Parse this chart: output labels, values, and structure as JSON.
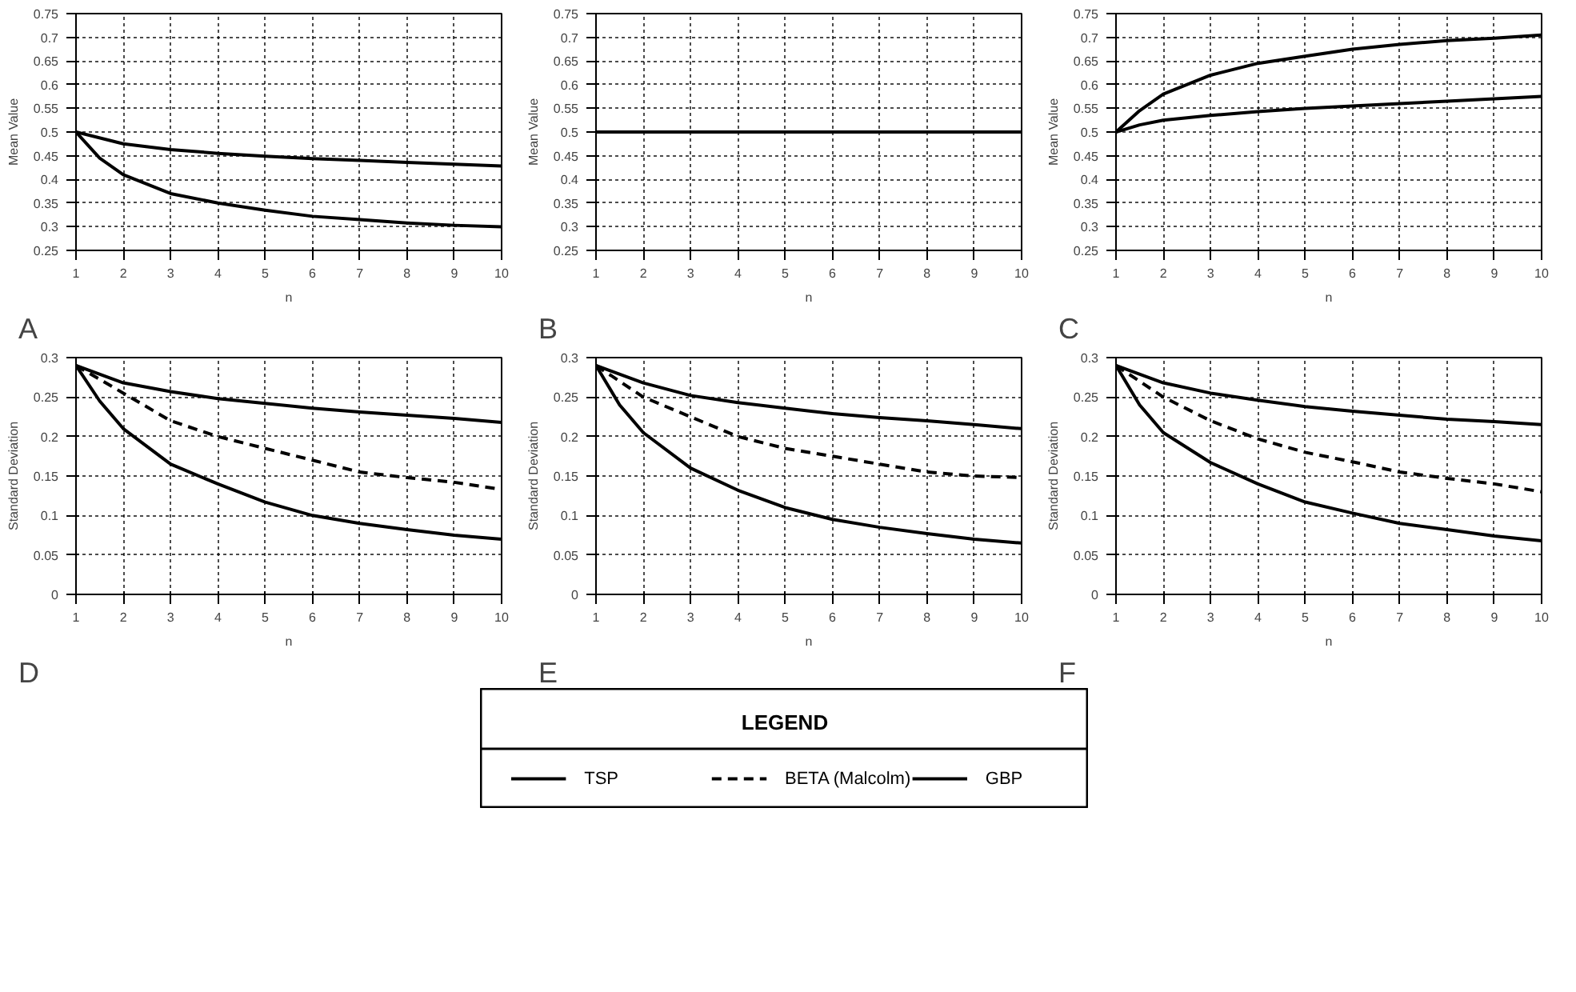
{
  "chart_data": [
    {
      "type": "line",
      "annotations": [
        "A"
      ],
      "xlabel": "n",
      "ylabel": "Mean Value",
      "xlim": [
        1,
        10
      ],
      "ylim": [
        0.25,
        0.75
      ],
      "xticks": [
        1,
        2,
        3,
        4,
        5,
        6,
        7,
        8,
        9,
        10
      ],
      "yticks": [
        0.25,
        0.3,
        0.35,
        0.4,
        0.45,
        0.5,
        0.55,
        0.6,
        0.65,
        0.7,
        0.75
      ],
      "grid": true,
      "series": [
        {
          "color": "#000000",
          "line_style": "solid",
          "x": [
            1,
            1.5,
            2,
            3,
            4,
            5,
            6,
            7,
            8,
            9,
            10
          ],
          "values": [
            0.5,
            0.445,
            0.41,
            0.37,
            0.35,
            0.335,
            0.322,
            0.315,
            0.308,
            0.303,
            0.3
          ]
        },
        {
          "color": "#000000",
          "line_style": "solid",
          "x": [
            1,
            2,
            3,
            4,
            5,
            6,
            7,
            8,
            9,
            10
          ],
          "values": [
            0.5,
            0.475,
            0.463,
            0.455,
            0.449,
            0.444,
            0.44,
            0.436,
            0.432,
            0.428
          ]
        }
      ]
    },
    {
      "type": "line",
      "annotations": [
        "B"
      ],
      "xlabel": "n",
      "ylabel": "Mean Value",
      "xlim": [
        1,
        10
      ],
      "ylim": [
        0.25,
        0.75
      ],
      "xticks": [
        1,
        2,
        3,
        4,
        5,
        6,
        7,
        8,
        9,
        10
      ],
      "yticks": [
        0.25,
        0.3,
        0.35,
        0.4,
        0.45,
        0.5,
        0.55,
        0.6,
        0.65,
        0.7,
        0.75
      ],
      "grid": true,
      "series": [
        {
          "color": "#000000",
          "line_style": "solid",
          "x": [
            1,
            2,
            3,
            4,
            5,
            6,
            7,
            8,
            9,
            10
          ],
          "values": [
            0.5,
            0.5,
            0.5,
            0.5,
            0.5,
            0.5,
            0.5,
            0.5,
            0.5,
            0.5
          ]
        }
      ]
    },
    {
      "type": "line",
      "annotations": [
        "C"
      ],
      "xlabel": "n",
      "ylabel": "Mean Value",
      "xlim": [
        1,
        10
      ],
      "ylim": [
        0.25,
        0.75
      ],
      "xticks": [
        1,
        2,
        3,
        4,
        5,
        6,
        7,
        8,
        9,
        10
      ],
      "yticks": [
        0.25,
        0.3,
        0.35,
        0.4,
        0.45,
        0.5,
        0.55,
        0.6,
        0.65,
        0.7,
        0.75
      ],
      "grid": true,
      "series": [
        {
          "color": "#000000",
          "line_style": "solid",
          "x": [
            1,
            1.5,
            2,
            3,
            4,
            5,
            6,
            7,
            8,
            9,
            10
          ],
          "values": [
            0.5,
            0.545,
            0.58,
            0.62,
            0.645,
            0.66,
            0.675,
            0.685,
            0.693,
            0.698,
            0.705
          ]
        },
        {
          "color": "#000000",
          "line_style": "solid",
          "x": [
            1,
            1.5,
            2,
            3,
            4,
            5,
            6,
            7,
            8,
            9,
            10
          ],
          "values": [
            0.5,
            0.515,
            0.525,
            0.535,
            0.543,
            0.55,
            0.555,
            0.56,
            0.565,
            0.57,
            0.575
          ]
        }
      ]
    },
    {
      "type": "line",
      "annotations": [
        "D"
      ],
      "xlabel": "n",
      "ylabel": "Standard Deviation",
      "xlim": [
        1,
        10
      ],
      "ylim": [
        0,
        0.3
      ],
      "xticks": [
        1,
        2,
        3,
        4,
        5,
        6,
        7,
        8,
        9,
        10
      ],
      "yticks": [
        0,
        0.05,
        0.1,
        0.15,
        0.2,
        0.25,
        0.3
      ],
      "grid": true,
      "series": [
        {
          "color": "#000000",
          "line_style": "solid",
          "x": [
            1,
            1.5,
            2,
            3,
            4,
            5,
            6,
            7,
            8,
            9,
            10
          ],
          "values": [
            0.29,
            0.245,
            0.21,
            0.165,
            0.14,
            0.117,
            0.1,
            0.09,
            0.082,
            0.075,
            0.07
          ]
        },
        {
          "color": "#000000",
          "line_style": "dashed",
          "x": [
            1,
            2,
            3,
            4,
            5,
            6,
            7,
            8,
            9,
            10
          ],
          "values": [
            0.29,
            0.255,
            0.22,
            0.2,
            0.185,
            0.17,
            0.155,
            0.148,
            0.142,
            0.133
          ]
        },
        {
          "color": "#000000",
          "line_style": "solid",
          "x": [
            1,
            2,
            3,
            4,
            5,
            6,
            7,
            8,
            9,
            10
          ],
          "values": [
            0.29,
            0.268,
            0.257,
            0.248,
            0.242,
            0.236,
            0.231,
            0.227,
            0.223,
            0.218
          ]
        }
      ]
    },
    {
      "type": "line",
      "annotations": [
        "E"
      ],
      "xlabel": "n",
      "ylabel": "Standard Deviation",
      "xlim": [
        1,
        10
      ],
      "ylim": [
        0,
        0.3
      ],
      "xticks": [
        1,
        2,
        3,
        4,
        5,
        6,
        7,
        8,
        9,
        10
      ],
      "yticks": [
        0,
        0.05,
        0.1,
        0.15,
        0.2,
        0.25,
        0.3
      ],
      "grid": true,
      "legend": "bottom",
      "legend_title": "LEGEND",
      "series": [
        {
          "name": "TSP",
          "color": "#000000",
          "line_style": "solid",
          "x": [
            1,
            1.5,
            2,
            3,
            4,
            5,
            6,
            7,
            8,
            9,
            10
          ],
          "values": [
            0.29,
            0.24,
            0.205,
            0.16,
            0.132,
            0.11,
            0.095,
            0.085,
            0.077,
            0.07,
            0.065
          ]
        },
        {
          "name": "BETA (Malcolm)",
          "color": "#000000",
          "line_style": "dashed",
          "x": [
            1,
            2,
            3,
            4,
            5,
            6,
            7,
            8,
            9,
            10
          ],
          "values": [
            0.29,
            0.25,
            0.225,
            0.2,
            0.185,
            0.175,
            0.165,
            0.155,
            0.15,
            0.148
          ]
        },
        {
          "name": "GBP",
          "color": "#000000",
          "line_style": "solid",
          "x": [
            1,
            2,
            3,
            4,
            5,
            6,
            7,
            8,
            9,
            10
          ],
          "values": [
            0.29,
            0.268,
            0.252,
            0.243,
            0.236,
            0.229,
            0.224,
            0.22,
            0.215,
            0.21
          ]
        }
      ]
    },
    {
      "type": "line",
      "annotations": [
        "F"
      ],
      "xlabel": "n",
      "ylabel": "Standard Deviation",
      "xlim": [
        1,
        10
      ],
      "ylim": [
        0,
        0.3
      ],
      "xticks": [
        1,
        2,
        3,
        4,
        5,
        6,
        7,
        8,
        9,
        10
      ],
      "yticks": [
        0,
        0.05,
        0.1,
        0.15,
        0.2,
        0.25,
        0.3
      ],
      "grid": true,
      "series": [
        {
          "color": "#000000",
          "line_style": "solid",
          "x": [
            1,
            1.5,
            2,
            3,
            4,
            5,
            6,
            7,
            8,
            9,
            10
          ],
          "values": [
            0.29,
            0.24,
            0.205,
            0.167,
            0.14,
            0.117,
            0.103,
            0.09,
            0.082,
            0.074,
            0.068
          ]
        },
        {
          "color": "#000000",
          "line_style": "dashed",
          "x": [
            1,
            2,
            3,
            4,
            5,
            6,
            7,
            8,
            9,
            10
          ],
          "values": [
            0.29,
            0.25,
            0.22,
            0.197,
            0.18,
            0.168,
            0.155,
            0.147,
            0.14,
            0.13
          ]
        },
        {
          "color": "#000000",
          "line_style": "solid",
          "x": [
            1,
            2,
            3,
            4,
            5,
            6,
            7,
            8,
            9,
            10
          ],
          "values": [
            0.29,
            0.268,
            0.255,
            0.246,
            0.238,
            0.232,
            0.227,
            0.222,
            0.219,
            0.215
          ]
        }
      ]
    }
  ]
}
